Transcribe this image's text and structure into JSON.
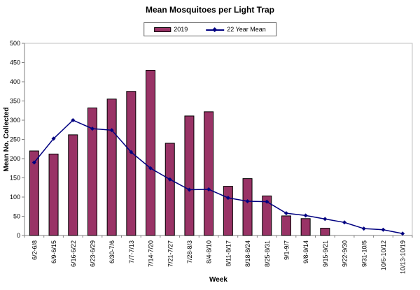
{
  "chart_data": {
    "type": "bar",
    "title": "Mean Mosquitoes per Light Trap",
    "xlabel": "Week",
    "ylabel": "Mean No. Collected",
    "ylim": [
      0,
      500
    ],
    "ytick_step": 50,
    "grid": false,
    "legend_position": "top-center",
    "categories": [
      "6/2-6/8",
      "6/9-6/15",
      "6/16-6/22",
      "6/23-6/29",
      "6/30-7/6",
      "7/7-7/13",
      "7/14-7/20",
      "7/21-7/27",
      "7/28-8/3",
      "8/4-8/10",
      "8/11-8/17",
      "8/18-8/24",
      "8/25-8/31",
      "9/1-9/7",
      "9/8-9/14",
      "9/15-9/21",
      "9/22-9/30",
      "9/31-10/5",
      "10/6-10/12",
      "10/13-10/19"
    ],
    "series": [
      {
        "name": "2019",
        "type": "bar",
        "color": "#993366",
        "values": [
          220,
          212,
          262,
          332,
          355,
          375,
          430,
          240,
          311,
          322,
          128,
          148,
          103,
          51,
          44,
          19,
          0,
          0,
          0,
          0
        ]
      },
      {
        "name": "22 Year Mean",
        "type": "line",
        "color": "#000080",
        "marker": "diamond",
        "values": [
          190,
          252,
          300,
          278,
          274,
          217,
          175,
          146,
          119,
          120,
          98,
          89,
          88,
          58,
          52,
          43,
          34,
          18,
          15,
          5
        ]
      }
    ],
    "colors": {
      "bar": "#993366",
      "line": "#000080",
      "axis": "#808080",
      "plot_border": "#c0c0c0",
      "text": "#000000",
      "background": "#ffffff"
    }
  }
}
